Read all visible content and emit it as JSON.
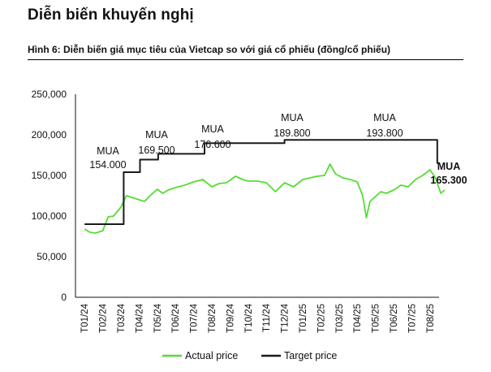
{
  "heading": "Diễn biến khuyến nghị",
  "caption": "Hình 6: Diễn biến giá mục tiêu của Vietcap so với giá cổ phiếu (đồng/cổ phiếu)",
  "colors": {
    "actual": "#55dd33",
    "target": "#1a1a1a",
    "axis": "#111111"
  },
  "chart_data": {
    "type": "line",
    "title": "",
    "xlabel": "",
    "ylabel": "",
    "ylim": [
      0,
      250000
    ],
    "y_ticks": [
      0,
      50000,
      100000,
      150000,
      200000,
      250000
    ],
    "y_tick_labels": [
      "0",
      "50,000",
      "100,000",
      "150,000",
      "200,000",
      "250,000"
    ],
    "x_tick_labels": [
      "T01/24",
      "T02/24",
      "T03/24",
      "T04/24",
      "T05/24",
      "T06/24",
      "T07/24",
      "T08/24",
      "T09/24",
      "T10/24",
      "T11/24",
      "T12/24",
      "T01/25",
      "T02/25",
      "T03/25",
      "T04/25",
      "T05/25",
      "T06/25",
      "T07/25",
      "T08/25"
    ],
    "legend": [
      "Actual price",
      "Target price"
    ],
    "series": [
      {
        "name": "Actual price",
        "x": [
          0,
          0.3,
          0.6,
          1.0,
          1.3,
          1.6,
          2.0,
          2.3,
          2.6,
          3.0,
          3.3,
          3.6,
          4.0,
          4.3,
          4.6,
          5.0,
          5.5,
          6.0,
          6.5,
          7.0,
          7.4,
          7.8,
          8.0,
          8.3,
          8.7,
          9.0,
          9.5,
          10.0,
          10.5,
          11.0,
          11.5,
          12.0,
          12.4,
          12.8,
          13.2,
          13.5,
          13.8,
          14.2,
          14.6,
          15.0,
          15.3,
          15.5,
          15.7,
          16.0,
          16.3,
          16.6,
          17.0,
          17.4,
          17.8,
          18.2,
          18.6,
          19.0,
          19.3,
          19.6,
          19.8
        ],
        "y": [
          84000,
          80000,
          79000,
          82000,
          99000,
          100000,
          111000,
          125000,
          123000,
          120000,
          118000,
          125000,
          133000,
          128000,
          132000,
          135000,
          138000,
          142000,
          145000,
          136000,
          140000,
          141000,
          144000,
          149000,
          145000,
          143000,
          143000,
          141000,
          130000,
          141000,
          136000,
          145000,
          147000,
          149000,
          150000,
          164000,
          152000,
          147000,
          145000,
          142000,
          125000,
          98000,
          118000,
          124000,
          130000,
          128000,
          132000,
          138000,
          136000,
          145000,
          150000,
          157000,
          147000,
          128000,
          132000
        ]
      },
      {
        "name": "Target price",
        "x": [
          0,
          2.15,
          2.15,
          3.05,
          3.05,
          4.05,
          4.05,
          6.6,
          6.6,
          11.0,
          11.0,
          16.1,
          16.1,
          19.4,
          19.4,
          19.5
        ],
        "y": [
          90000,
          90000,
          154000,
          154000,
          169500,
          169500,
          176600,
          176600,
          189800,
          189800,
          193800,
          193800,
          193800,
          193800,
          165300,
          165300
        ]
      }
    ],
    "annotations": [
      {
        "text": "MUA",
        "value": "154.000"
      },
      {
        "text": "MUA",
        "value": "169.500"
      },
      {
        "text": "MUA",
        "value": "176.600"
      },
      {
        "text": "MUA",
        "value": "189.800"
      },
      {
        "text": "MUA",
        "value": "193.800"
      },
      {
        "text": "MUA",
        "value": "165.300"
      }
    ]
  }
}
